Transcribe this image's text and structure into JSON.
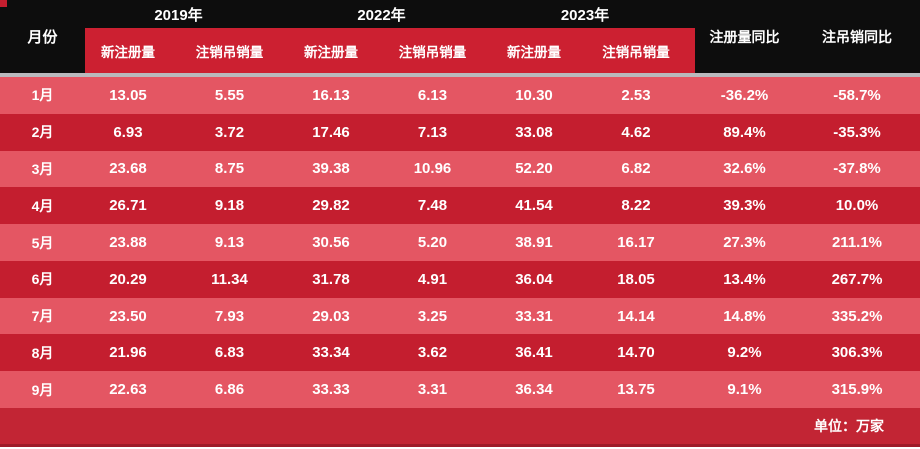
{
  "colors": {
    "header_black": "#0d0d0d",
    "subheader_red": "#cc2031",
    "row_light": "#e45663",
    "row_dark": "#c41e2f",
    "footer_red": "#c22534",
    "footer_edge": "#9e1b29",
    "divider_gray": "#b9b9bd",
    "text_white": "#ffffff"
  },
  "table": {
    "month_header": "月份",
    "year_groups": [
      {
        "year": "2019年",
        "subs": [
          "新注册量",
          "注销吊销量"
        ]
      },
      {
        "year": "2022年",
        "subs": [
          "新注册量",
          "注销吊销量"
        ]
      },
      {
        "year": "2023年",
        "subs": [
          "新注册量",
          "注销吊销量"
        ]
      }
    ],
    "yoy_headers": [
      "注册量同比",
      "注吊销同比"
    ],
    "rows": [
      {
        "month": "1月",
        "values": [
          "13.05",
          "5.55",
          "16.13",
          "6.13",
          "10.30",
          "2.53",
          "-36.2%",
          "-58.7%"
        ]
      },
      {
        "month": "2月",
        "values": [
          "6.93",
          "3.72",
          "17.46",
          "7.13",
          "33.08",
          "4.62",
          "89.4%",
          "-35.3%"
        ]
      },
      {
        "month": "3月",
        "values": [
          "23.68",
          "8.75",
          "39.38",
          "10.96",
          "52.20",
          "6.82",
          "32.6%",
          "-37.8%"
        ]
      },
      {
        "month": "4月",
        "values": [
          "26.71",
          "9.18",
          "29.82",
          "7.48",
          "41.54",
          "8.22",
          "39.3%",
          "10.0%"
        ]
      },
      {
        "month": "5月",
        "values": [
          "23.88",
          "9.13",
          "30.56",
          "5.20",
          "38.91",
          "16.17",
          "27.3%",
          "211.1%"
        ]
      },
      {
        "month": "6月",
        "values": [
          "20.29",
          "11.34",
          "31.78",
          "4.91",
          "36.04",
          "18.05",
          "13.4%",
          "267.7%"
        ]
      },
      {
        "month": "7月",
        "values": [
          "23.50",
          "7.93",
          "29.03",
          "3.25",
          "33.31",
          "14.14",
          "14.8%",
          "335.2%"
        ]
      },
      {
        "month": "8月",
        "values": [
          "21.96",
          "6.83",
          "33.34",
          "3.62",
          "36.41",
          "14.70",
          "9.2%",
          "306.3%"
        ]
      },
      {
        "month": "9月",
        "values": [
          "22.63",
          "6.86",
          "33.33",
          "3.31",
          "36.34",
          "13.75",
          "9.1%",
          "315.9%"
        ]
      }
    ],
    "footer_note": "单位：万家"
  },
  "chart_data": {
    "type": "table",
    "unit": "万家",
    "columns": [
      "月份",
      "2019年新注册量",
      "2019年注销吊销量",
      "2022年新注册量",
      "2022年注销吊销量",
      "2023年新注册量",
      "2023年注销吊销量",
      "注册量同比",
      "注吊销同比"
    ],
    "rows": [
      [
        "1月",
        13.05,
        5.55,
        16.13,
        6.13,
        10.3,
        2.53,
        "-36.2%",
        "-58.7%"
      ],
      [
        "2月",
        6.93,
        3.72,
        17.46,
        7.13,
        33.08,
        4.62,
        "89.4%",
        "-35.3%"
      ],
      [
        "3月",
        23.68,
        8.75,
        39.38,
        10.96,
        52.2,
        6.82,
        "32.6%",
        "-37.8%"
      ],
      [
        "4月",
        26.71,
        9.18,
        29.82,
        7.48,
        41.54,
        8.22,
        "39.3%",
        "10.0%"
      ],
      [
        "5月",
        23.88,
        9.13,
        30.56,
        5.2,
        38.91,
        16.17,
        "27.3%",
        "211.1%"
      ],
      [
        "6月",
        20.29,
        11.34,
        31.78,
        4.91,
        36.04,
        18.05,
        "13.4%",
        "267.7%"
      ],
      [
        "7月",
        23.5,
        7.93,
        29.03,
        3.25,
        33.31,
        14.14,
        "14.8%",
        "335.2%"
      ],
      [
        "8月",
        21.96,
        6.83,
        33.34,
        3.62,
        36.41,
        14.7,
        "9.2%",
        "306.3%"
      ],
      [
        "9月",
        22.63,
        6.86,
        33.33,
        3.31,
        36.34,
        13.75,
        "9.1%",
        "315.9%"
      ]
    ]
  }
}
